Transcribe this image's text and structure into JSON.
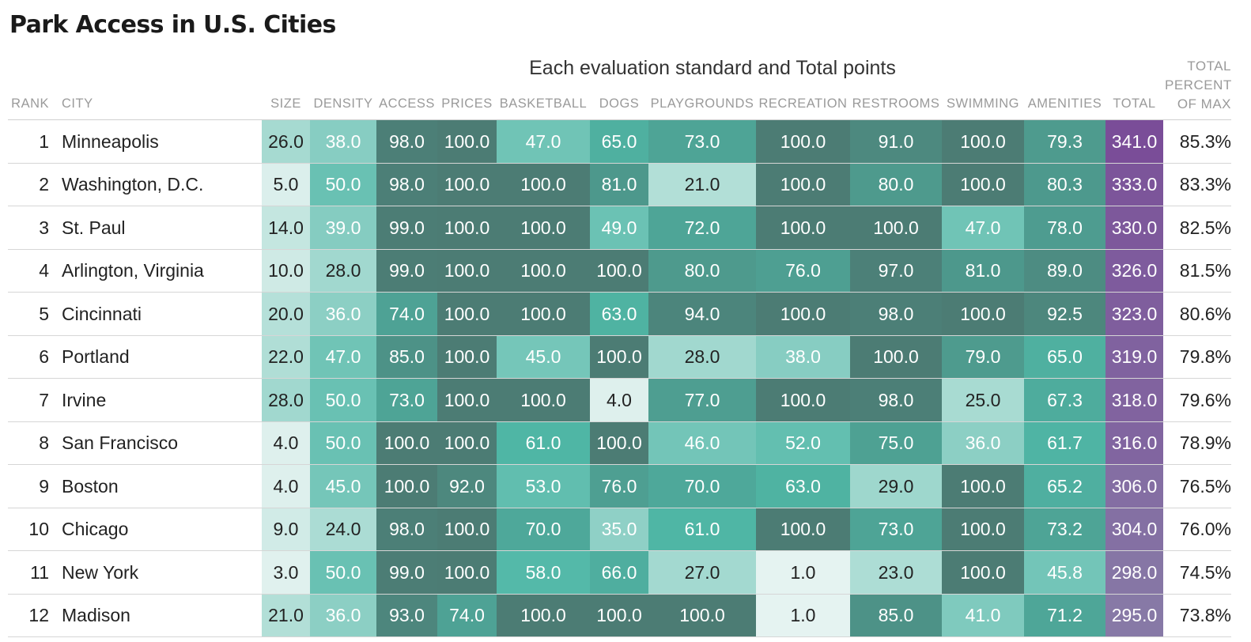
{
  "title": "Park Access in U.S. Cities",
  "group_label": "Each evaluation standard and Total points",
  "percent_header": [
    "TOTAL",
    "PERCENT",
    "OF MAX"
  ],
  "headers": {
    "rank": "RANK",
    "city": "CITY",
    "metrics": [
      "SIZE",
      "DENSITY",
      "ACCESS",
      "PRICES",
      "BASKETBALL",
      "DOGS",
      "PLAYGROUNDS",
      "RECREATION",
      "RESTROOMS",
      "SWIMMING",
      "AMENITIES",
      "TOTAL"
    ]
  },
  "colors": {
    "teal_light": "#e8f4f2",
    "teal_mid": "#4fb7a6",
    "teal_dark": "#4c7c74",
    "purple_dark": "#7a4d98",
    "purple_light": "#8779a6",
    "text_dark": "#222222",
    "text_light": "#ffffff"
  },
  "chart_data": {
    "type": "table",
    "title": "Park Access in U.S. Cities",
    "columns": [
      "RANK",
      "CITY",
      "SIZE",
      "DENSITY",
      "ACCESS",
      "PRICES",
      "BASKETBALL",
      "DOGS",
      "PLAYGROUNDS",
      "RECREATION",
      "RESTROOMS",
      "SWIMMING",
      "AMENITIES",
      "TOTAL",
      "TOTAL PERCENT OF MAX"
    ],
    "rows": [
      {
        "rank": "1",
        "city": "Minneapolis",
        "values": [
          "26.0",
          "38.0",
          "98.0",
          "100.0",
          "47.0",
          "65.0",
          "73.0",
          "100.0",
          "91.0",
          "100.0",
          "79.3",
          "341.0"
        ],
        "pct": "85.3%"
      },
      {
        "rank": "2",
        "city": "Washington, D.C.",
        "values": [
          "5.0",
          "50.0",
          "98.0",
          "100.0",
          "100.0",
          "81.0",
          "21.0",
          "100.0",
          "80.0",
          "100.0",
          "80.3",
          "333.0"
        ],
        "pct": "83.3%"
      },
      {
        "rank": "3",
        "city": "St. Paul",
        "values": [
          "14.0",
          "39.0",
          "99.0",
          "100.0",
          "100.0",
          "49.0",
          "72.0",
          "100.0",
          "100.0",
          "47.0",
          "78.0",
          "330.0"
        ],
        "pct": "82.5%"
      },
      {
        "rank": "4",
        "city": "Arlington, Virginia",
        "values": [
          "10.0",
          "28.0",
          "99.0",
          "100.0",
          "100.0",
          "100.0",
          "80.0",
          "76.0",
          "97.0",
          "81.0",
          "89.0",
          "326.0"
        ],
        "pct": "81.5%"
      },
      {
        "rank": "5",
        "city": "Cincinnati",
        "values": [
          "20.0",
          "36.0",
          "74.0",
          "100.0",
          "100.0",
          "63.0",
          "94.0",
          "100.0",
          "98.0",
          "100.0",
          "92.5",
          "323.0"
        ],
        "pct": "80.6%"
      },
      {
        "rank": "6",
        "city": "Portland",
        "values": [
          "22.0",
          "47.0",
          "85.0",
          "100.0",
          "45.0",
          "100.0",
          "28.0",
          "38.0",
          "100.0",
          "79.0",
          "65.0",
          "319.0"
        ],
        "pct": "79.8%"
      },
      {
        "rank": "7",
        "city": "Irvine",
        "values": [
          "28.0",
          "50.0",
          "73.0",
          "100.0",
          "100.0",
          "4.0",
          "77.0",
          "100.0",
          "98.0",
          "25.0",
          "67.3",
          "318.0"
        ],
        "pct": "79.6%"
      },
      {
        "rank": "8",
        "city": "San Francisco",
        "values": [
          "4.0",
          "50.0",
          "100.0",
          "100.0",
          "61.0",
          "100.0",
          "46.0",
          "52.0",
          "75.0",
          "36.0",
          "61.7",
          "316.0"
        ],
        "pct": "78.9%"
      },
      {
        "rank": "9",
        "city": "Boston",
        "values": [
          "4.0",
          "45.0",
          "100.0",
          "92.0",
          "53.0",
          "76.0",
          "70.0",
          "63.0",
          "29.0",
          "100.0",
          "65.2",
          "306.0"
        ],
        "pct": "76.5%"
      },
      {
        "rank": "10",
        "city": "Chicago",
        "values": [
          "9.0",
          "24.0",
          "98.0",
          "100.0",
          "70.0",
          "35.0",
          "61.0",
          "100.0",
          "73.0",
          "100.0",
          "73.2",
          "304.0"
        ],
        "pct": "76.0%"
      },
      {
        "rank": "11",
        "city": "New York",
        "values": [
          "3.0",
          "50.0",
          "99.0",
          "100.0",
          "58.0",
          "66.0",
          "27.0",
          "1.0",
          "23.0",
          "100.0",
          "45.8",
          "298.0"
        ],
        "pct": "74.5%"
      },
      {
        "rank": "12",
        "city": "Madison",
        "values": [
          "21.0",
          "36.0",
          "93.0",
          "74.0",
          "100.0",
          "100.0",
          "100.0",
          "1.0",
          "85.0",
          "41.0",
          "71.2",
          "295.0"
        ],
        "pct": "73.8%"
      }
    ]
  }
}
